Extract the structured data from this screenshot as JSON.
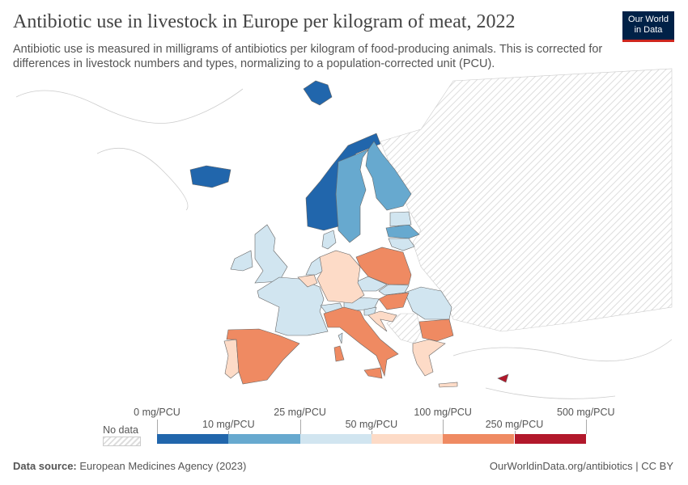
{
  "header": {
    "title": "Antibiotic use in livestock in Europe per kilogram of meat, 2022",
    "subtitle": "Antibiotic use is measured in milligrams of antibiotics per kilogram of food-producing animals. This is corrected for differences in livestock numbers and types, normalizing to a population-corrected unit (PCU).",
    "logo": "Our World in Data"
  },
  "legend": {
    "no_data": "No data",
    "top_labels": [
      "0 mg/PCU",
      "25 mg/PCU",
      "100 mg/PCU",
      "500 mg/PCU"
    ],
    "bottom_labels": [
      "10 mg/PCU",
      "50 mg/PCU",
      "250 mg/PCU"
    ],
    "bins": [
      "#2166ac",
      "#67a9cf",
      "#d1e5f0",
      "#fddbc7",
      "#ef8a62",
      "#b2182b"
    ]
  },
  "colors": {
    "no_data_hatch": "#dddddd",
    "border": "#666666"
  },
  "map_data": {
    "countries": [
      {
        "name": "Norway",
        "bin": 0
      },
      {
        "name": "Iceland",
        "bin": 0
      },
      {
        "name": "Svalbard",
        "bin": 0
      },
      {
        "name": "Sweden",
        "bin": 1
      },
      {
        "name": "Finland",
        "bin": 1
      },
      {
        "name": "Latvia",
        "bin": 1
      },
      {
        "name": "Estonia",
        "bin": 2
      },
      {
        "name": "Lithuania",
        "bin": 2
      },
      {
        "name": "Ireland",
        "bin": 2
      },
      {
        "name": "United Kingdom",
        "bin": 2
      },
      {
        "name": "Denmark",
        "bin": 2
      },
      {
        "name": "Netherlands",
        "bin": 2
      },
      {
        "name": "France",
        "bin": 2
      },
      {
        "name": "Switzerland",
        "bin": 2
      },
      {
        "name": "Austria",
        "bin": 2
      },
      {
        "name": "Czechia",
        "bin": 2
      },
      {
        "name": "Slovakia",
        "bin": 2
      },
      {
        "name": "Slovenia",
        "bin": 2
      },
      {
        "name": "Romania",
        "bin": 2
      },
      {
        "name": "Corsica",
        "bin": 2
      },
      {
        "name": "Belgium",
        "bin": 3
      },
      {
        "name": "Germany",
        "bin": 3
      },
      {
        "name": "Portugal",
        "bin": 3
      },
      {
        "name": "Croatia",
        "bin": 3
      },
      {
        "name": "Greece",
        "bin": 3
      },
      {
        "name": "Crete",
        "bin": 3
      },
      {
        "name": "Spain",
        "bin": 4
      },
      {
        "name": "Italy",
        "bin": 4
      },
      {
        "name": "Sicily",
        "bin": 4
      },
      {
        "name": "Sardinia",
        "bin": 4
      },
      {
        "name": "Poland",
        "bin": 4
      },
      {
        "name": "Hungary",
        "bin": 4
      },
      {
        "name": "Bulgaria",
        "bin": 4
      },
      {
        "name": "Cyprus",
        "bin": 5
      }
    ]
  },
  "footer": {
    "source_label": "Data source:",
    "source": "European Medicines Agency (2023)",
    "link": "OurWorldinData.org/antibiotics | CC BY"
  }
}
